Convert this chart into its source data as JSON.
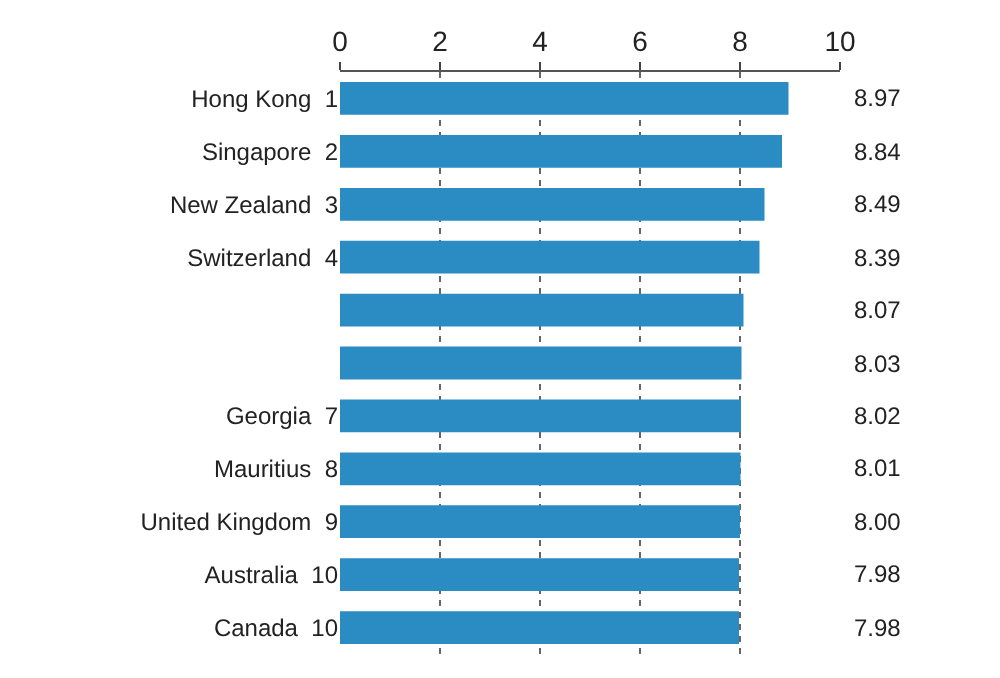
{
  "chart_data": {
    "type": "bar",
    "orientation": "horizontal",
    "categories": [
      "Hong Kong  1",
      "Singapore  2",
      "New Zealand  3",
      "Switzerland  4",
      null,
      null,
      "Georgia  7",
      "Mauritius  8",
      "United Kingdom  9",
      "Australia  10",
      "Canada  10"
    ],
    "values": [
      8.97,
      8.84,
      8.49,
      8.39,
      8.07,
      8.03,
      8.02,
      8.01,
      8.0,
      7.98,
      7.98
    ],
    "value_labels": [
      "8.97",
      "8.84",
      "8.49",
      "8.39",
      "8.07",
      "8.03",
      "8.02",
      "8.01",
      "8.00",
      "7.98",
      "7.98"
    ],
    "color": "#2b8cc4",
    "xlim": [
      0,
      10
    ],
    "xticks": [
      0,
      2,
      4,
      6,
      8,
      10
    ],
    "grid": "x",
    "legend": false
  }
}
